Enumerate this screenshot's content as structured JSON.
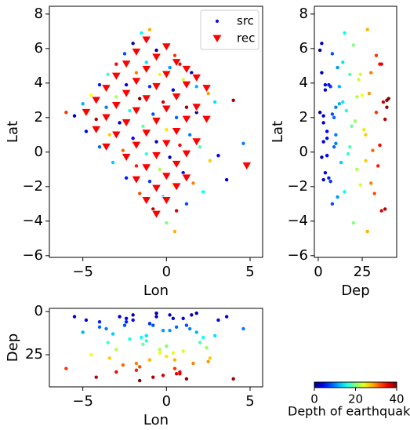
{
  "chart_data": {
    "type": "scatter",
    "series": [
      {
        "name": "src",
        "color": "#0000ff",
        "marker": "dot",
        "colormap": "jet",
        "x": [
          -5.5,
          -5,
          -4.5,
          -4,
          -3.5,
          -3,
          -2.5,
          -2,
          -1.5,
          -1,
          -4.8,
          -4.2,
          -3.6,
          -3,
          -2.4,
          -1.8,
          -1.2,
          -0.6,
          0,
          0.5,
          -4,
          -3.4,
          -2.8,
          -2.2,
          -1.6,
          -1,
          -0.4,
          0.2,
          0.8,
          1.5,
          -3.2,
          -2.6,
          -2,
          -1.4,
          -0.8,
          -0.2,
          0.4,
          1,
          1.8,
          2.5,
          -2.4,
          -1.8,
          -1.2,
          -0.6,
          0,
          0.6,
          1.2,
          1.8,
          2.4,
          2.9,
          -1.6,
          -1,
          -0.4,
          0.2,
          0.8,
          1.4,
          2,
          2.6,
          3.1,
          -0.8,
          -0.2,
          0.4,
          1,
          1.6,
          2.2,
          0,
          0.6,
          1.2,
          0.5,
          -6,
          4.6,
          4,
          3.6
        ],
        "y": [
          2.1,
          2.8,
          3.3,
          3.9,
          4.5,
          5.1,
          5.7,
          6.3,
          6.9,
          7.1,
          1.2,
          1.9,
          2.6,
          3.2,
          3.9,
          4.6,
          5.2,
          5.9,
          6.2,
          5.6,
          0.3,
          1,
          1.7,
          2.4,
          3.1,
          3.8,
          4.5,
          4.9,
          5.1,
          4.6,
          -0.6,
          0.1,
          0.8,
          1.5,
          2.2,
          2.9,
          3.6,
          4.2,
          3.8,
          3.4,
          -1.5,
          -0.8,
          -0.1,
          0.6,
          1.3,
          2,
          2.6,
          2.3,
          1.8,
          2.9,
          -2.4,
          -1.7,
          -1,
          -0.3,
          0.4,
          1,
          0.3,
          -0.5,
          -0.2,
          -3.3,
          -2.6,
          -1.9,
          -1.2,
          -1.8,
          -2.3,
          -4.1,
          -3.4,
          -3,
          -4.6,
          2.3,
          0.5,
          3,
          -1.6
        ],
        "depth": [
          3,
          12,
          25,
          6,
          18,
          35,
          8,
          2,
          15,
          28,
          5,
          38,
          10,
          22,
          4,
          30,
          14,
          1,
          20,
          33,
          9,
          27,
          3,
          16,
          40,
          7,
          24,
          11,
          36,
          2,
          13,
          31,
          5,
          19,
          8,
          37,
          4,
          23,
          12,
          29,
          6,
          34,
          17,
          3,
          26,
          9,
          39,
          1,
          21,
          14,
          32,
          7,
          22,
          2,
          35,
          10,
          18,
          27,
          5,
          38,
          11,
          24,
          4,
          30,
          15,
          20,
          36,
          8,
          28,
          33,
          10,
          39,
          3
        ]
      },
      {
        "name": "rec",
        "color": "#ff0000",
        "marker": "triangle-down",
        "x": [
          -4.8,
          -4.2,
          -3.6,
          -3,
          -2.4,
          -1.8,
          -1.2,
          -4.2,
          -3.6,
          -3,
          -2.4,
          -1.8,
          -1.2,
          -0.6,
          0,
          -3.6,
          -3,
          -2.4,
          -1.8,
          -1.2,
          -0.6,
          0,
          0.6,
          1.2,
          -2.4,
          -1.8,
          -1.2,
          -0.6,
          0,
          0.6,
          1.2,
          1.8,
          2.4,
          -1.8,
          -1.2,
          -0.6,
          0,
          0.6,
          1.2,
          1.8,
          2.4,
          -1.2,
          -0.6,
          0,
          0.6,
          1.2,
          1.8,
          -0.6,
          0,
          0.6,
          1.2,
          4.8
        ],
        "y": [
          2.3,
          3,
          3.7,
          4.4,
          5.1,
          5.8,
          6.5,
          1.3,
          2,
          2.7,
          3.4,
          4.1,
          4.8,
          5.5,
          6.1,
          0.3,
          1,
          1.7,
          2.4,
          3.1,
          3.8,
          4.5,
          5.2,
          4.8,
          -0.3,
          0.4,
          1.1,
          1.8,
          2.5,
          3.2,
          3.9,
          4.3,
          3.7,
          -1.6,
          -0.9,
          -0.2,
          0.5,
          1.2,
          1.9,
          2.6,
          1.9,
          -2.8,
          -2.1,
          -1.4,
          -0.7,
          -0.1,
          0.6,
          -3.6,
          -2.8,
          -2,
          -1.5,
          -0.8
        ]
      }
    ],
    "panels": {
      "map": {
        "xlabel": "Lon",
        "ylabel": "Lat",
        "xlim": [
          -7,
          5.75
        ],
        "ylim": [
          -6.1,
          8.45
        ],
        "xticks": [
          {
            "value": -5,
            "label": "−5"
          },
          0,
          5
        ],
        "yticks": [
          {
            "value": -6,
            "label": "−6"
          },
          {
            "value": -4,
            "label": "−4"
          },
          {
            "value": -2,
            "label": "−2"
          },
          0,
          2,
          4,
          6,
          8
        ],
        "legend": "upper right"
      },
      "depth_lat": {
        "xlabel": "Dep",
        "ylabel": "Lat",
        "xlim": [
          -2.2,
          44.6
        ],
        "ylim": [
          -6.1,
          8.45
        ],
        "xticks": [
          0,
          25
        ],
        "yticks": [
          {
            "value": -6,
            "label": "−6"
          },
          {
            "value": -4,
            "label": "−4"
          },
          {
            "value": -2,
            "label": "−2"
          },
          0,
          2,
          4,
          6,
          8
        ]
      },
      "lon_depth": {
        "xlabel": "Lon",
        "ylabel": "Dep",
        "xlim": [
          -7,
          5.75
        ],
        "ylim": [
          43.6,
          -1.8
        ],
        "xticks": [
          {
            "value": -5,
            "label": "−5"
          },
          0,
          5
        ],
        "yticks": [
          0,
          25
        ]
      },
      "colorbar": {
        "label": "Depth of earthquak",
        "lim": [
          0,
          40
        ],
        "ticks": [
          0,
          20,
          40
        ],
        "colormap": "jet"
      }
    }
  }
}
